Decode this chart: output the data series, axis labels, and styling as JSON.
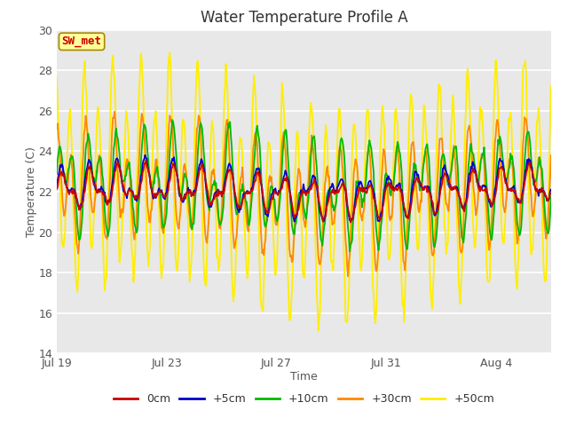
{
  "title": "Water Temperature Profile A",
  "xlabel": "Time",
  "ylabel": "Temperature (C)",
  "ylim": [
    14,
    30
  ],
  "yticks": [
    14,
    16,
    18,
    20,
    22,
    24,
    26,
    28,
    30
  ],
  "annotation": "SW_met",
  "annotation_color": "#cc0000",
  "annotation_bg": "#ffff99",
  "annotation_border": "#aa8800",
  "plot_bg": "#e8e8e8",
  "series": {
    "0cm": {
      "color": "#cc0000",
      "lw": 1.3
    },
    "+5cm": {
      "color": "#0000cc",
      "lw": 1.3
    },
    "+10cm": {
      "color": "#00bb00",
      "lw": 1.3
    },
    "+30cm": {
      "color": "#ff8800",
      "lw": 1.3
    },
    "+50cm": {
      "color": "#ffee00",
      "lw": 1.3
    }
  },
  "tick_positions": [
    0,
    4,
    8,
    12,
    16
  ],
  "tick_labels": [
    "Jul 19",
    "Jul 23",
    "Jul 27",
    "Jul 31",
    "Aug 4"
  ],
  "n_points": 600,
  "time_days": 18
}
